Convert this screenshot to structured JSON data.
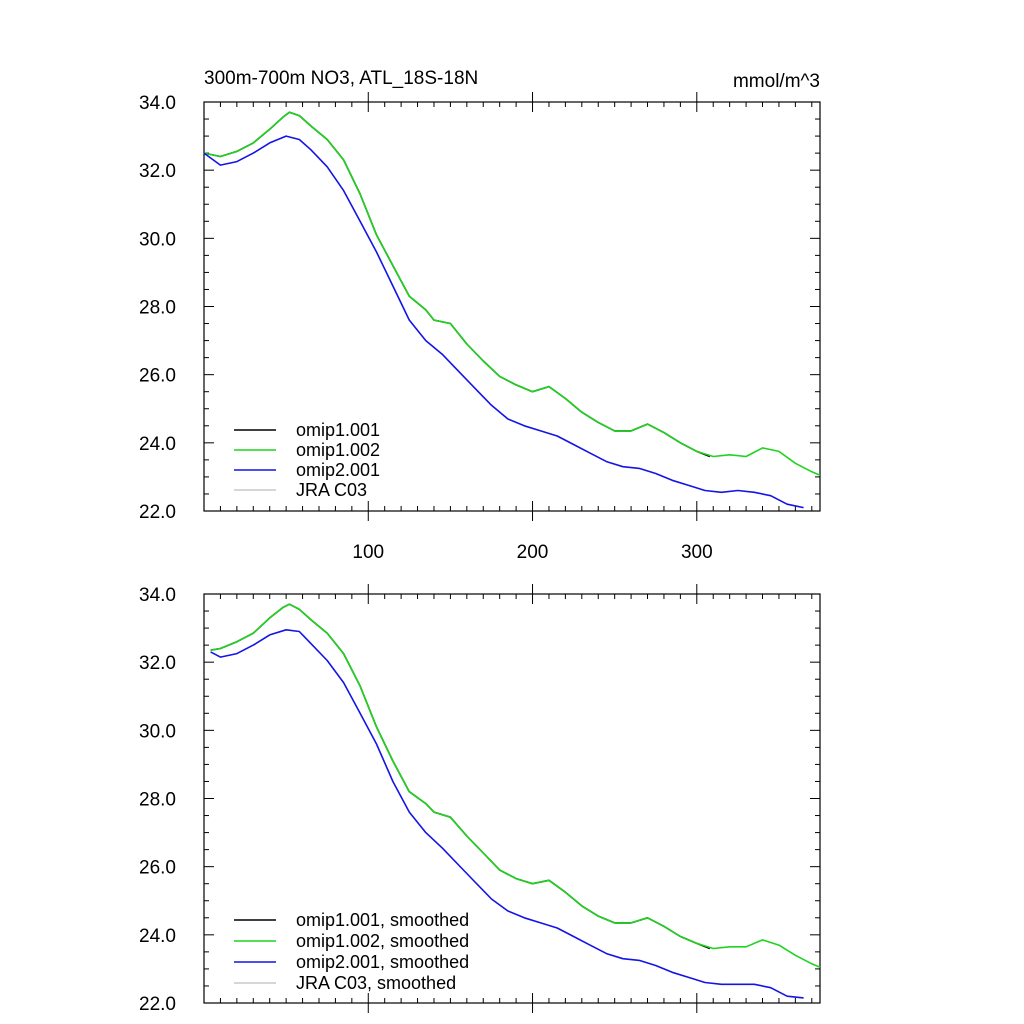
{
  "title": "300m-700m NO3, ATL_18S-18N",
  "units": "mmol/m^3",
  "chart_data": [
    {
      "type": "line",
      "title": "300m-700m NO3, ATL_18S-18N",
      "ylabel": "mmol/m^3",
      "xlabel": "",
      "xlim": [
        0,
        375
      ],
      "ylim": [
        22.0,
        34.0
      ],
      "x_ticks": [
        100,
        200,
        300
      ],
      "x_tick_labels": [
        "100",
        "200",
        "300"
      ],
      "y_ticks": [
        22.0,
        24.0,
        26.0,
        28.0,
        30.0,
        32.0,
        34.0
      ],
      "y_tick_labels": [
        "22.0",
        "24.0",
        "26.0",
        "28.0",
        "30.0",
        "32.0",
        "34.0"
      ],
      "legend_position": "bottom-left",
      "grid": false,
      "series": [
        {
          "name": "omip1.001",
          "color": "#000000",
          "points": [
            [
              0,
              32.5
            ],
            [
              10,
              32.4
            ],
            [
              20,
              32.55
            ],
            [
              30,
              32.8
            ],
            [
              40,
              33.2
            ],
            [
              48,
              33.55
            ],
            [
              52,
              33.7
            ],
            [
              58,
              33.6
            ],
            [
              65,
              33.3
            ],
            [
              75,
              32.9
            ],
            [
              85,
              32.3
            ],
            [
              95,
              31.3
            ],
            [
              105,
              30.1
            ],
            [
              115,
              29.2
            ],
            [
              125,
              28.3
            ],
            [
              135,
              27.9
            ],
            [
              140,
              27.6
            ],
            [
              150,
              27.5
            ],
            [
              160,
              26.9
            ],
            [
              170,
              26.4
            ],
            [
              180,
              25.95
            ],
            [
              190,
              25.7
            ],
            [
              200,
              25.5
            ],
            [
              210,
              25.65
            ],
            [
              220,
              25.3
            ],
            [
              230,
              24.9
            ],
            [
              240,
              24.6
            ],
            [
              250,
              24.35
            ],
            [
              260,
              24.35
            ],
            [
              270,
              24.55
            ],
            [
              280,
              24.3
            ],
            [
              290,
              24.0
            ],
            [
              300,
              23.75
            ],
            [
              308,
              23.6
            ]
          ]
        },
        {
          "name": "omip1.002",
          "color": "#1ed41e",
          "points": [
            [
              0,
              32.5
            ],
            [
              10,
              32.4
            ],
            [
              20,
              32.55
            ],
            [
              30,
              32.8
            ],
            [
              40,
              33.2
            ],
            [
              48,
              33.55
            ],
            [
              52,
              33.7
            ],
            [
              58,
              33.6
            ],
            [
              65,
              33.3
            ],
            [
              75,
              32.9
            ],
            [
              85,
              32.3
            ],
            [
              95,
              31.3
            ],
            [
              105,
              30.1
            ],
            [
              115,
              29.2
            ],
            [
              125,
              28.3
            ],
            [
              135,
              27.9
            ],
            [
              140,
              27.6
            ],
            [
              150,
              27.5
            ],
            [
              160,
              26.9
            ],
            [
              170,
              26.4
            ],
            [
              180,
              25.95
            ],
            [
              190,
              25.7
            ],
            [
              200,
              25.5
            ],
            [
              210,
              25.65
            ],
            [
              220,
              25.3
            ],
            [
              230,
              24.9
            ],
            [
              240,
              24.6
            ],
            [
              250,
              24.35
            ],
            [
              260,
              24.35
            ],
            [
              270,
              24.55
            ],
            [
              280,
              24.3
            ],
            [
              290,
              24.0
            ],
            [
              300,
              23.75
            ],
            [
              310,
              23.6
            ],
            [
              320,
              23.65
            ],
            [
              330,
              23.6
            ],
            [
              340,
              23.85
            ],
            [
              350,
              23.75
            ],
            [
              360,
              23.4
            ],
            [
              370,
              23.15
            ],
            [
              375,
              23.05
            ]
          ]
        },
        {
          "name": "omip2.001",
          "color": "#1414e6",
          "points": [
            [
              0,
              32.5
            ],
            [
              10,
              32.15
            ],
            [
              20,
              32.25
            ],
            [
              30,
              32.5
            ],
            [
              40,
              32.8
            ],
            [
              50,
              33.0
            ],
            [
              58,
              32.9
            ],
            [
              65,
              32.6
            ],
            [
              75,
              32.1
            ],
            [
              85,
              31.4
            ],
            [
              95,
              30.5
            ],
            [
              105,
              29.6
            ],
            [
              115,
              28.6
            ],
            [
              125,
              27.6
            ],
            [
              135,
              27.0
            ],
            [
              145,
              26.6
            ],
            [
              155,
              26.1
            ],
            [
              165,
              25.6
            ],
            [
              175,
              25.1
            ],
            [
              185,
              24.7
            ],
            [
              195,
              24.5
            ],
            [
              205,
              24.35
            ],
            [
              215,
              24.2
            ],
            [
              225,
              23.95
            ],
            [
              235,
              23.7
            ],
            [
              245,
              23.45
            ],
            [
              255,
              23.3
            ],
            [
              265,
              23.25
            ],
            [
              275,
              23.1
            ],
            [
              285,
              22.9
            ],
            [
              295,
              22.75
            ],
            [
              305,
              22.6
            ],
            [
              315,
              22.55
            ],
            [
              325,
              22.6
            ],
            [
              335,
              22.55
            ],
            [
              345,
              22.45
            ],
            [
              355,
              22.2
            ],
            [
              365,
              22.1
            ]
          ]
        },
        {
          "name": "JRA C03",
          "color": "#c8c8c8",
          "points": []
        }
      ]
    },
    {
      "type": "line",
      "title": "",
      "ylabel": "",
      "xlabel": "",
      "xlim": [
        0,
        375
      ],
      "ylim": [
        22.0,
        34.0
      ],
      "x_ticks": [
        100,
        200,
        300
      ],
      "x_tick_labels": [],
      "y_ticks": [
        22.0,
        24.0,
        26.0,
        28.0,
        30.0,
        32.0,
        34.0
      ],
      "y_tick_labels": [
        "22.0",
        "24.0",
        "26.0",
        "28.0",
        "30.0",
        "32.0",
        "34.0"
      ],
      "legend_position": "bottom-left",
      "grid": false,
      "series": [
        {
          "name": "omip1.001, smoothed",
          "color": "#000000",
          "points": [
            [
              4,
              32.35
            ],
            [
              10,
              32.4
            ],
            [
              20,
              32.6
            ],
            [
              30,
              32.85
            ],
            [
              40,
              33.3
            ],
            [
              48,
              33.6
            ],
            [
              52,
              33.7
            ],
            [
              58,
              33.55
            ],
            [
              65,
              33.25
            ],
            [
              75,
              32.85
            ],
            [
              85,
              32.25
            ],
            [
              95,
              31.3
            ],
            [
              105,
              30.1
            ],
            [
              115,
              29.1
            ],
            [
              125,
              28.2
            ],
            [
              135,
              27.85
            ],
            [
              140,
              27.6
            ],
            [
              150,
              27.45
            ],
            [
              160,
              26.9
            ],
            [
              170,
              26.4
            ],
            [
              180,
              25.9
            ],
            [
              190,
              25.65
            ],
            [
              200,
              25.5
            ],
            [
              210,
              25.6
            ],
            [
              220,
              25.25
            ],
            [
              230,
              24.85
            ],
            [
              240,
              24.55
            ],
            [
              250,
              24.35
            ],
            [
              260,
              24.35
            ],
            [
              270,
              24.5
            ],
            [
              280,
              24.25
            ],
            [
              290,
              23.95
            ],
            [
              300,
              23.75
            ],
            [
              308,
              23.6
            ]
          ]
        },
        {
          "name": "omip1.002, smoothed",
          "color": "#1ed41e",
          "points": [
            [
              4,
              32.35
            ],
            [
              10,
              32.4
            ],
            [
              20,
              32.6
            ],
            [
              30,
              32.85
            ],
            [
              40,
              33.3
            ],
            [
              48,
              33.6
            ],
            [
              52,
              33.7
            ],
            [
              58,
              33.55
            ],
            [
              65,
              33.25
            ],
            [
              75,
              32.85
            ],
            [
              85,
              32.25
            ],
            [
              95,
              31.3
            ],
            [
              105,
              30.1
            ],
            [
              115,
              29.1
            ],
            [
              125,
              28.2
            ],
            [
              135,
              27.85
            ],
            [
              140,
              27.6
            ],
            [
              150,
              27.45
            ],
            [
              160,
              26.9
            ],
            [
              170,
              26.4
            ],
            [
              180,
              25.9
            ],
            [
              190,
              25.65
            ],
            [
              200,
              25.5
            ],
            [
              210,
              25.6
            ],
            [
              220,
              25.25
            ],
            [
              230,
              24.85
            ],
            [
              240,
              24.55
            ],
            [
              250,
              24.35
            ],
            [
              260,
              24.35
            ],
            [
              270,
              24.5
            ],
            [
              280,
              24.25
            ],
            [
              290,
              23.95
            ],
            [
              300,
              23.75
            ],
            [
              310,
              23.6
            ],
            [
              320,
              23.65
            ],
            [
              330,
              23.65
            ],
            [
              340,
              23.85
            ],
            [
              350,
              23.7
            ],
            [
              360,
              23.4
            ],
            [
              370,
              23.15
            ],
            [
              375,
              23.05
            ]
          ]
        },
        {
          "name": "omip2.001, smoothed",
          "color": "#1414e6",
          "points": [
            [
              4,
              32.3
            ],
            [
              10,
              32.15
            ],
            [
              20,
              32.25
            ],
            [
              30,
              32.5
            ],
            [
              40,
              32.8
            ],
            [
              50,
              32.95
            ],
            [
              58,
              32.9
            ],
            [
              65,
              32.55
            ],
            [
              75,
              32.05
            ],
            [
              85,
              31.4
            ],
            [
              95,
              30.5
            ],
            [
              105,
              29.6
            ],
            [
              115,
              28.5
            ],
            [
              125,
              27.6
            ],
            [
              135,
              27.0
            ],
            [
              145,
              26.55
            ],
            [
              155,
              26.05
            ],
            [
              165,
              25.55
            ],
            [
              175,
              25.05
            ],
            [
              185,
              24.7
            ],
            [
              195,
              24.5
            ],
            [
              205,
              24.35
            ],
            [
              215,
              24.2
            ],
            [
              225,
              23.95
            ],
            [
              235,
              23.7
            ],
            [
              245,
              23.45
            ],
            [
              255,
              23.3
            ],
            [
              265,
              23.25
            ],
            [
              275,
              23.1
            ],
            [
              285,
              22.9
            ],
            [
              295,
              22.75
            ],
            [
              305,
              22.6
            ],
            [
              315,
              22.55
            ],
            [
              325,
              22.55
            ],
            [
              335,
              22.55
            ],
            [
              345,
              22.45
            ],
            [
              355,
              22.2
            ],
            [
              365,
              22.15
            ]
          ]
        },
        {
          "name": "JRA C03, smoothed",
          "color": "#c8c8c8",
          "points": []
        }
      ]
    }
  ]
}
